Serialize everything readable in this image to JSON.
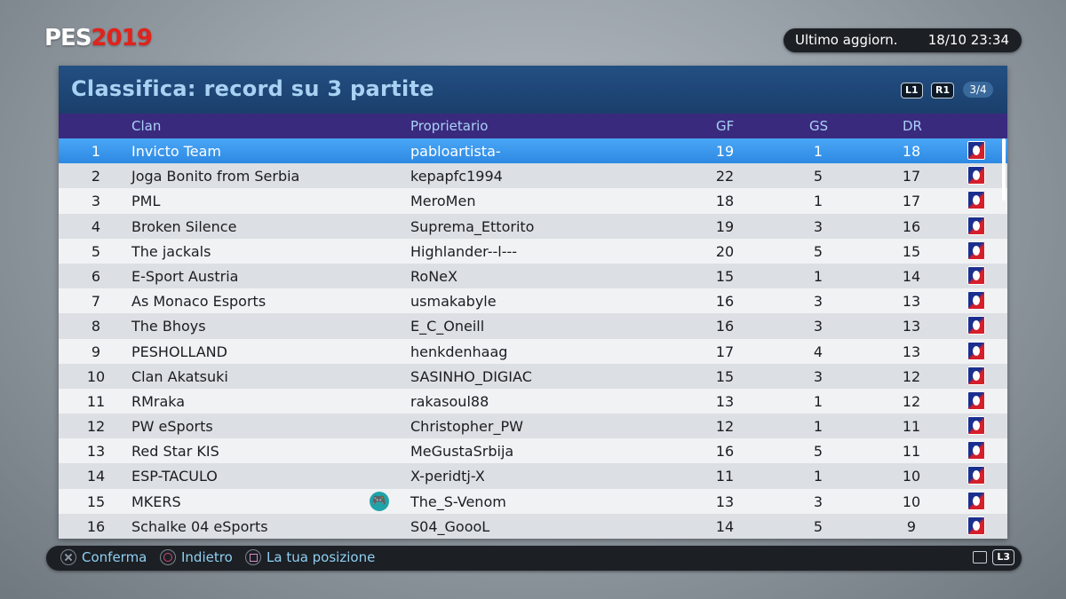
{
  "logo": {
    "pes": "PES",
    "year": "2019"
  },
  "update": {
    "label": "Ultimo aggiorn.",
    "value": "18/10 23:34"
  },
  "panel": {
    "title": "Classifica: record su 3 partite",
    "hints": {
      "l1": "L1",
      "r1": "R1"
    },
    "page_indicator": "3/4"
  },
  "columns": {
    "clan": "Clan",
    "owner": "Proprietario",
    "gf": "GF",
    "gs": "GS",
    "dr": "DR"
  },
  "rows": [
    {
      "rank": "1",
      "clan": "Invicto Team",
      "owner": "pabloartista-",
      "gf": "19",
      "gs": "1",
      "dr": "18"
    },
    {
      "rank": "2",
      "clan": "Joga Bonito from Serbia",
      "owner": "kepapfc1994",
      "gf": "22",
      "gs": "5",
      "dr": "17"
    },
    {
      "rank": "3",
      "clan": "PML",
      "owner": "MeroMen",
      "gf": "18",
      "gs": "1",
      "dr": "17"
    },
    {
      "rank": "4",
      "clan": "Broken Silence",
      "owner": "Suprema_Ettorito",
      "gf": "19",
      "gs": "3",
      "dr": "16"
    },
    {
      "rank": "5",
      "clan": "The jackals",
      "owner": "Highlander--l---",
      "gf": "20",
      "gs": "5",
      "dr": "15"
    },
    {
      "rank": "6",
      "clan": "E-Sport Austria",
      "owner": "RoNeX",
      "gf": "15",
      "gs": "1",
      "dr": "14"
    },
    {
      "rank": "7",
      "clan": "As Monaco Esports",
      "owner": "usmakabyle",
      "gf": "16",
      "gs": "3",
      "dr": "13"
    },
    {
      "rank": "8",
      "clan": "The Bhoys",
      "owner": "E_C_Oneill",
      "gf": "16",
      "gs": "3",
      "dr": "13"
    },
    {
      "rank": "9",
      "clan": "PESHOLLAND",
      "owner": "henkdenhaag",
      "gf": "17",
      "gs": "4",
      "dr": "13"
    },
    {
      "rank": "10",
      "clan": "Clan Akatsuki",
      "owner": "SASINHO_DIGIAC",
      "gf": "15",
      "gs": "3",
      "dr": "12"
    },
    {
      "rank": "11",
      "clan": "RMraka",
      "owner": "rakasoul88",
      "gf": "13",
      "gs": "1",
      "dr": "12"
    },
    {
      "rank": "12",
      "clan": "PW eSports",
      "owner": "Christopher_PW",
      "gf": "12",
      "gs": "1",
      "dr": "11"
    },
    {
      "rank": "13",
      "clan": "Red Star KIS",
      "owner": "MeGustaSrbija",
      "gf": "16",
      "gs": "5",
      "dr": "11"
    },
    {
      "rank": "14",
      "clan": "ESP-TACULO",
      "owner": "X-peridtj-X",
      "gf": "11",
      "gs": "1",
      "dr": "10"
    },
    {
      "rank": "15",
      "clan": "MKERS",
      "owner": "The_S-Venom",
      "gf": "13",
      "gs": "3",
      "dr": "10"
    },
    {
      "rank": "16",
      "clan": "Schalke 04 eSports",
      "owner": "S04_GoooL",
      "gf": "14",
      "gs": "5",
      "dr": "9"
    }
  ],
  "footer": {
    "confirm": "Conferma",
    "back": "Indietro",
    "position": "La tua posizione",
    "l3": "L3"
  }
}
